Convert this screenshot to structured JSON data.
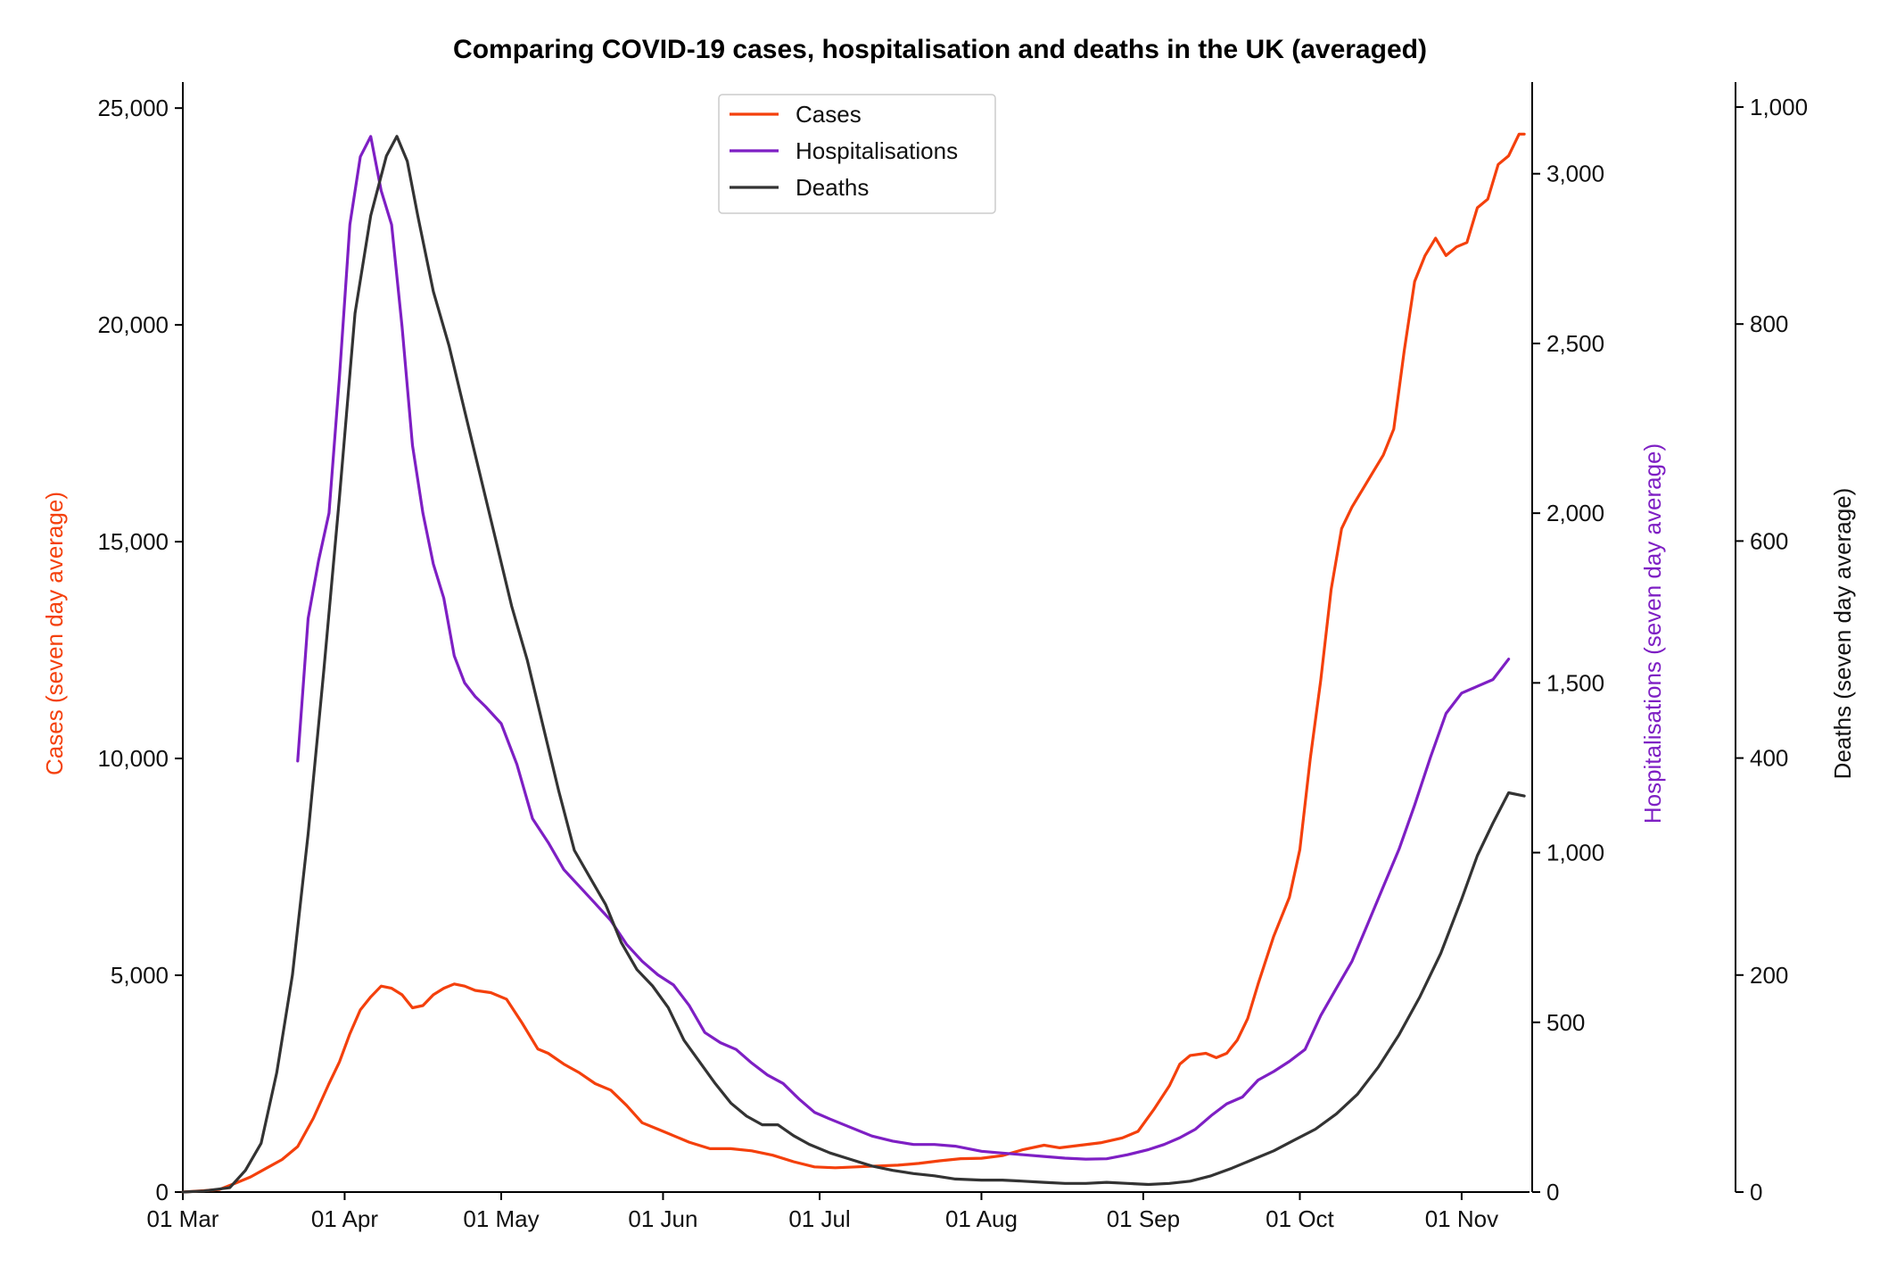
{
  "chart_data": {
    "type": "line",
    "title": "Comparing COVID-19 cases, hospitalisation and deaths in the UK (averaged)",
    "x_ticks": [
      "01 Mar",
      "01 Apr",
      "01 May",
      "01 Jun",
      "01 Jul",
      "01 Aug",
      "01 Sep",
      "01 Oct",
      "01 Nov"
    ],
    "x_range": [
      "2020-03-01",
      "2020-11-14"
    ],
    "legend_position": "top-center",
    "axes": {
      "cases": {
        "label": "Cases (seven day average)",
        "color": "#f4400c",
        "range": [
          0,
          25600
        ],
        "ticks": [
          "0",
          "5,000",
          "10,000",
          "15,000",
          "20,000",
          "25,000"
        ],
        "tick_values": [
          0,
          5000,
          10000,
          15000,
          20000,
          25000
        ]
      },
      "hospitalisations": {
        "label": "Hospitalisations (seven day average)",
        "color": "#7e1fc4",
        "range": [
          0,
          3270
        ],
        "ticks": [
          "0",
          "500",
          "1,000",
          "1,500",
          "2,000",
          "2,500",
          "3,000"
        ],
        "tick_values": [
          0,
          500,
          1000,
          1500,
          2000,
          2500,
          3000
        ]
      },
      "deaths": {
        "label": "Deaths (seven day average)",
        "color": "#000000",
        "range": [
          0,
          1023
        ],
        "ticks": [
          "0",
          "200",
          "400",
          "600",
          "800",
          "1,000"
        ],
        "tick_values": [
          0,
          200,
          400,
          600,
          800,
          1000
        ]
      }
    },
    "series": [
      {
        "name": "Cases",
        "axis": "cases",
        "color": "#f4400c",
        "points": [
          [
            "2020-03-01",
            0
          ],
          [
            "2020-03-05",
            30
          ],
          [
            "2020-03-08",
            60
          ],
          [
            "2020-03-11",
            200
          ],
          [
            "2020-03-14",
            350
          ],
          [
            "2020-03-17",
            550
          ],
          [
            "2020-03-20",
            750
          ],
          [
            "2020-03-23",
            1050
          ],
          [
            "2020-03-26",
            1700
          ],
          [
            "2020-03-29",
            2500
          ],
          [
            "2020-03-31",
            3000
          ],
          [
            "2020-04-02",
            3650
          ],
          [
            "2020-04-04",
            4200
          ],
          [
            "2020-04-06",
            4500
          ],
          [
            "2020-04-08",
            4750
          ],
          [
            "2020-04-10",
            4700
          ],
          [
            "2020-04-12",
            4550
          ],
          [
            "2020-04-14",
            4250
          ],
          [
            "2020-04-16",
            4300
          ],
          [
            "2020-04-18",
            4550
          ],
          [
            "2020-04-20",
            4700
          ],
          [
            "2020-04-22",
            4800
          ],
          [
            "2020-04-24",
            4750
          ],
          [
            "2020-04-26",
            4650
          ],
          [
            "2020-04-29",
            4600
          ],
          [
            "2020-05-02",
            4450
          ],
          [
            "2020-05-05",
            3900
          ],
          [
            "2020-05-08",
            3300
          ],
          [
            "2020-05-10",
            3200
          ],
          [
            "2020-05-13",
            2950
          ],
          [
            "2020-05-16",
            2750
          ],
          [
            "2020-05-19",
            2500
          ],
          [
            "2020-05-22",
            2350
          ],
          [
            "2020-05-25",
            2000
          ],
          [
            "2020-05-28",
            1600
          ],
          [
            "2020-05-31",
            1450
          ],
          [
            "2020-06-03",
            1300
          ],
          [
            "2020-06-06",
            1150
          ],
          [
            "2020-06-10",
            1000
          ],
          [
            "2020-06-14",
            1000
          ],
          [
            "2020-06-18",
            950
          ],
          [
            "2020-06-22",
            850
          ],
          [
            "2020-06-26",
            700
          ],
          [
            "2020-06-30",
            580
          ],
          [
            "2020-07-04",
            560
          ],
          [
            "2020-07-08",
            580
          ],
          [
            "2020-07-12",
            600
          ],
          [
            "2020-07-16",
            620
          ],
          [
            "2020-07-20",
            660
          ],
          [
            "2020-07-24",
            720
          ],
          [
            "2020-07-28",
            770
          ],
          [
            "2020-08-01",
            780
          ],
          [
            "2020-08-05",
            840
          ],
          [
            "2020-08-09",
            980
          ],
          [
            "2020-08-13",
            1080
          ],
          [
            "2020-08-16",
            1020
          ],
          [
            "2020-08-20",
            1080
          ],
          [
            "2020-08-24",
            1140
          ],
          [
            "2020-08-28",
            1250
          ],
          [
            "2020-08-31",
            1400
          ],
          [
            "2020-09-03",
            1900
          ],
          [
            "2020-09-06",
            2450
          ],
          [
            "2020-09-08",
            2950
          ],
          [
            "2020-09-10",
            3150
          ],
          [
            "2020-09-13",
            3200
          ],
          [
            "2020-09-15",
            3100
          ],
          [
            "2020-09-17",
            3200
          ],
          [
            "2020-09-19",
            3500
          ],
          [
            "2020-09-21",
            4000
          ],
          [
            "2020-09-23",
            4800
          ],
          [
            "2020-09-26",
            5900
          ],
          [
            "2020-09-29",
            6800
          ],
          [
            "2020-10-01",
            7900
          ],
          [
            "2020-10-03",
            10000
          ],
          [
            "2020-10-05",
            11800
          ],
          [
            "2020-10-07",
            13900
          ],
          [
            "2020-10-09",
            15300
          ],
          [
            "2020-10-11",
            15800
          ],
          [
            "2020-10-13",
            16200
          ],
          [
            "2020-10-15",
            16600
          ],
          [
            "2020-10-17",
            17000
          ],
          [
            "2020-10-19",
            17600
          ],
          [
            "2020-10-21",
            19400
          ],
          [
            "2020-10-23",
            21000
          ],
          [
            "2020-10-25",
            21600
          ],
          [
            "2020-10-27",
            22000
          ],
          [
            "2020-10-29",
            21600
          ],
          [
            "2020-10-31",
            21800
          ],
          [
            "2020-11-02",
            21900
          ],
          [
            "2020-11-04",
            22700
          ],
          [
            "2020-11-06",
            22900
          ],
          [
            "2020-11-08",
            23700
          ],
          [
            "2020-11-10",
            23900
          ],
          [
            "2020-11-12",
            24400
          ],
          [
            "2020-11-13",
            24400
          ]
        ]
      },
      {
        "name": "Hospitalisations",
        "axis": "hospitalisations",
        "color": "#7e1fc4",
        "points": [
          [
            "2020-03-23",
            1270
          ],
          [
            "2020-03-25",
            1690
          ],
          [
            "2020-03-27",
            1860
          ],
          [
            "2020-03-29",
            2000
          ],
          [
            "2020-03-31",
            2400
          ],
          [
            "2020-04-02",
            2850
          ],
          [
            "2020-04-04",
            3050
          ],
          [
            "2020-04-06",
            3110
          ],
          [
            "2020-04-08",
            2950
          ],
          [
            "2020-04-10",
            2850
          ],
          [
            "2020-04-12",
            2550
          ],
          [
            "2020-04-14",
            2200
          ],
          [
            "2020-04-16",
            2000
          ],
          [
            "2020-04-18",
            1850
          ],
          [
            "2020-04-20",
            1750
          ],
          [
            "2020-04-22",
            1580
          ],
          [
            "2020-04-24",
            1500
          ],
          [
            "2020-04-26",
            1460
          ],
          [
            "2020-04-28",
            1430
          ],
          [
            "2020-05-01",
            1380
          ],
          [
            "2020-05-04",
            1260
          ],
          [
            "2020-05-07",
            1100
          ],
          [
            "2020-05-10",
            1030
          ],
          [
            "2020-05-13",
            950
          ],
          [
            "2020-05-16",
            900
          ],
          [
            "2020-05-19",
            850
          ],
          [
            "2020-05-22",
            800
          ],
          [
            "2020-05-25",
            730
          ],
          [
            "2020-05-28",
            680
          ],
          [
            "2020-05-31",
            640
          ],
          [
            "2020-06-03",
            610
          ],
          [
            "2020-06-06",
            550
          ],
          [
            "2020-06-09",
            470
          ],
          [
            "2020-06-12",
            440
          ],
          [
            "2020-06-15",
            420
          ],
          [
            "2020-06-18",
            380
          ],
          [
            "2020-06-21",
            345
          ],
          [
            "2020-06-24",
            320
          ],
          [
            "2020-06-27",
            275
          ],
          [
            "2020-06-30",
            235
          ],
          [
            "2020-07-03",
            215
          ],
          [
            "2020-07-07",
            190
          ],
          [
            "2020-07-11",
            165
          ],
          [
            "2020-07-15",
            150
          ],
          [
            "2020-07-19",
            140
          ],
          [
            "2020-07-23",
            140
          ],
          [
            "2020-07-27",
            135
          ],
          [
            "2020-08-01",
            120
          ],
          [
            "2020-08-05",
            115
          ],
          [
            "2020-08-09",
            110
          ],
          [
            "2020-08-13",
            105
          ],
          [
            "2020-08-17",
            100
          ],
          [
            "2020-08-21",
            97
          ],
          [
            "2020-08-25",
            98
          ],
          [
            "2020-08-29",
            110
          ],
          [
            "2020-09-02",
            125
          ],
          [
            "2020-09-05",
            140
          ],
          [
            "2020-09-08",
            160
          ],
          [
            "2020-09-11",
            185
          ],
          [
            "2020-09-14",
            225
          ],
          [
            "2020-09-17",
            260
          ],
          [
            "2020-09-20",
            280
          ],
          [
            "2020-09-23",
            330
          ],
          [
            "2020-09-26",
            355
          ],
          [
            "2020-09-29",
            385
          ],
          [
            "2020-10-02",
            420
          ],
          [
            "2020-10-05",
            520
          ],
          [
            "2020-10-08",
            600
          ],
          [
            "2020-10-11",
            680
          ],
          [
            "2020-10-14",
            790
          ],
          [
            "2020-10-17",
            900
          ],
          [
            "2020-10-20",
            1010
          ],
          [
            "2020-10-23",
            1140
          ],
          [
            "2020-10-26",
            1280
          ],
          [
            "2020-10-29",
            1410
          ],
          [
            "2020-11-01",
            1470
          ],
          [
            "2020-11-04",
            1490
          ],
          [
            "2020-11-07",
            1510
          ],
          [
            "2020-11-10",
            1570
          ]
        ]
      },
      {
        "name": "Deaths",
        "axis": "deaths",
        "color": "#333333",
        "points": [
          [
            "2020-03-01",
            0
          ],
          [
            "2020-03-05",
            1
          ],
          [
            "2020-03-10",
            4
          ],
          [
            "2020-03-13",
            20
          ],
          [
            "2020-03-16",
            45
          ],
          [
            "2020-03-19",
            110
          ],
          [
            "2020-03-22",
            200
          ],
          [
            "2020-03-25",
            330
          ],
          [
            "2020-03-28",
            480
          ],
          [
            "2020-03-31",
            640
          ],
          [
            "2020-04-03",
            810
          ],
          [
            "2020-04-06",
            900
          ],
          [
            "2020-04-09",
            955
          ],
          [
            "2020-04-11",
            973
          ],
          [
            "2020-04-13",
            950
          ],
          [
            "2020-04-15",
            900
          ],
          [
            "2020-04-18",
            830
          ],
          [
            "2020-04-21",
            780
          ],
          [
            "2020-04-24",
            720
          ],
          [
            "2020-04-27",
            660
          ],
          [
            "2020-04-30",
            600
          ],
          [
            "2020-05-03",
            540
          ],
          [
            "2020-05-06",
            490
          ],
          [
            "2020-05-09",
            430
          ],
          [
            "2020-05-12",
            370
          ],
          [
            "2020-05-15",
            315
          ],
          [
            "2020-05-18",
            290
          ],
          [
            "2020-05-21",
            265
          ],
          [
            "2020-05-24",
            230
          ],
          [
            "2020-05-27",
            205
          ],
          [
            "2020-05-30",
            190
          ],
          [
            "2020-06-02",
            170
          ],
          [
            "2020-06-05",
            140
          ],
          [
            "2020-06-08",
            120
          ],
          [
            "2020-06-11",
            100
          ],
          [
            "2020-06-14",
            82
          ],
          [
            "2020-06-17",
            70
          ],
          [
            "2020-06-20",
            62
          ],
          [
            "2020-06-23",
            62
          ],
          [
            "2020-06-26",
            52
          ],
          [
            "2020-06-29",
            44
          ],
          [
            "2020-07-03",
            36
          ],
          [
            "2020-07-07",
            30
          ],
          [
            "2020-07-11",
            24
          ],
          [
            "2020-07-15",
            20
          ],
          [
            "2020-07-19",
            17
          ],
          [
            "2020-07-23",
            15
          ],
          [
            "2020-07-27",
            12
          ],
          [
            "2020-08-01",
            11
          ],
          [
            "2020-08-05",
            11
          ],
          [
            "2020-08-09",
            10
          ],
          [
            "2020-08-13",
            9
          ],
          [
            "2020-08-17",
            8
          ],
          [
            "2020-08-21",
            8
          ],
          [
            "2020-08-25",
            9
          ],
          [
            "2020-08-29",
            8
          ],
          [
            "2020-09-02",
            7
          ],
          [
            "2020-09-06",
            8
          ],
          [
            "2020-09-10",
            10
          ],
          [
            "2020-09-14",
            15
          ],
          [
            "2020-09-18",
            22
          ],
          [
            "2020-09-22",
            30
          ],
          [
            "2020-09-26",
            38
          ],
          [
            "2020-09-30",
            48
          ],
          [
            "2020-10-04",
            58
          ],
          [
            "2020-10-08",
            72
          ],
          [
            "2020-10-12",
            90
          ],
          [
            "2020-10-16",
            115
          ],
          [
            "2020-10-20",
            145
          ],
          [
            "2020-10-24",
            180
          ],
          [
            "2020-10-28",
            220
          ],
          [
            "2020-11-01",
            270
          ],
          [
            "2020-11-04",
            310
          ],
          [
            "2020-11-07",
            340
          ],
          [
            "2020-11-10",
            368
          ],
          [
            "2020-11-13",
            365
          ]
        ]
      }
    ]
  }
}
